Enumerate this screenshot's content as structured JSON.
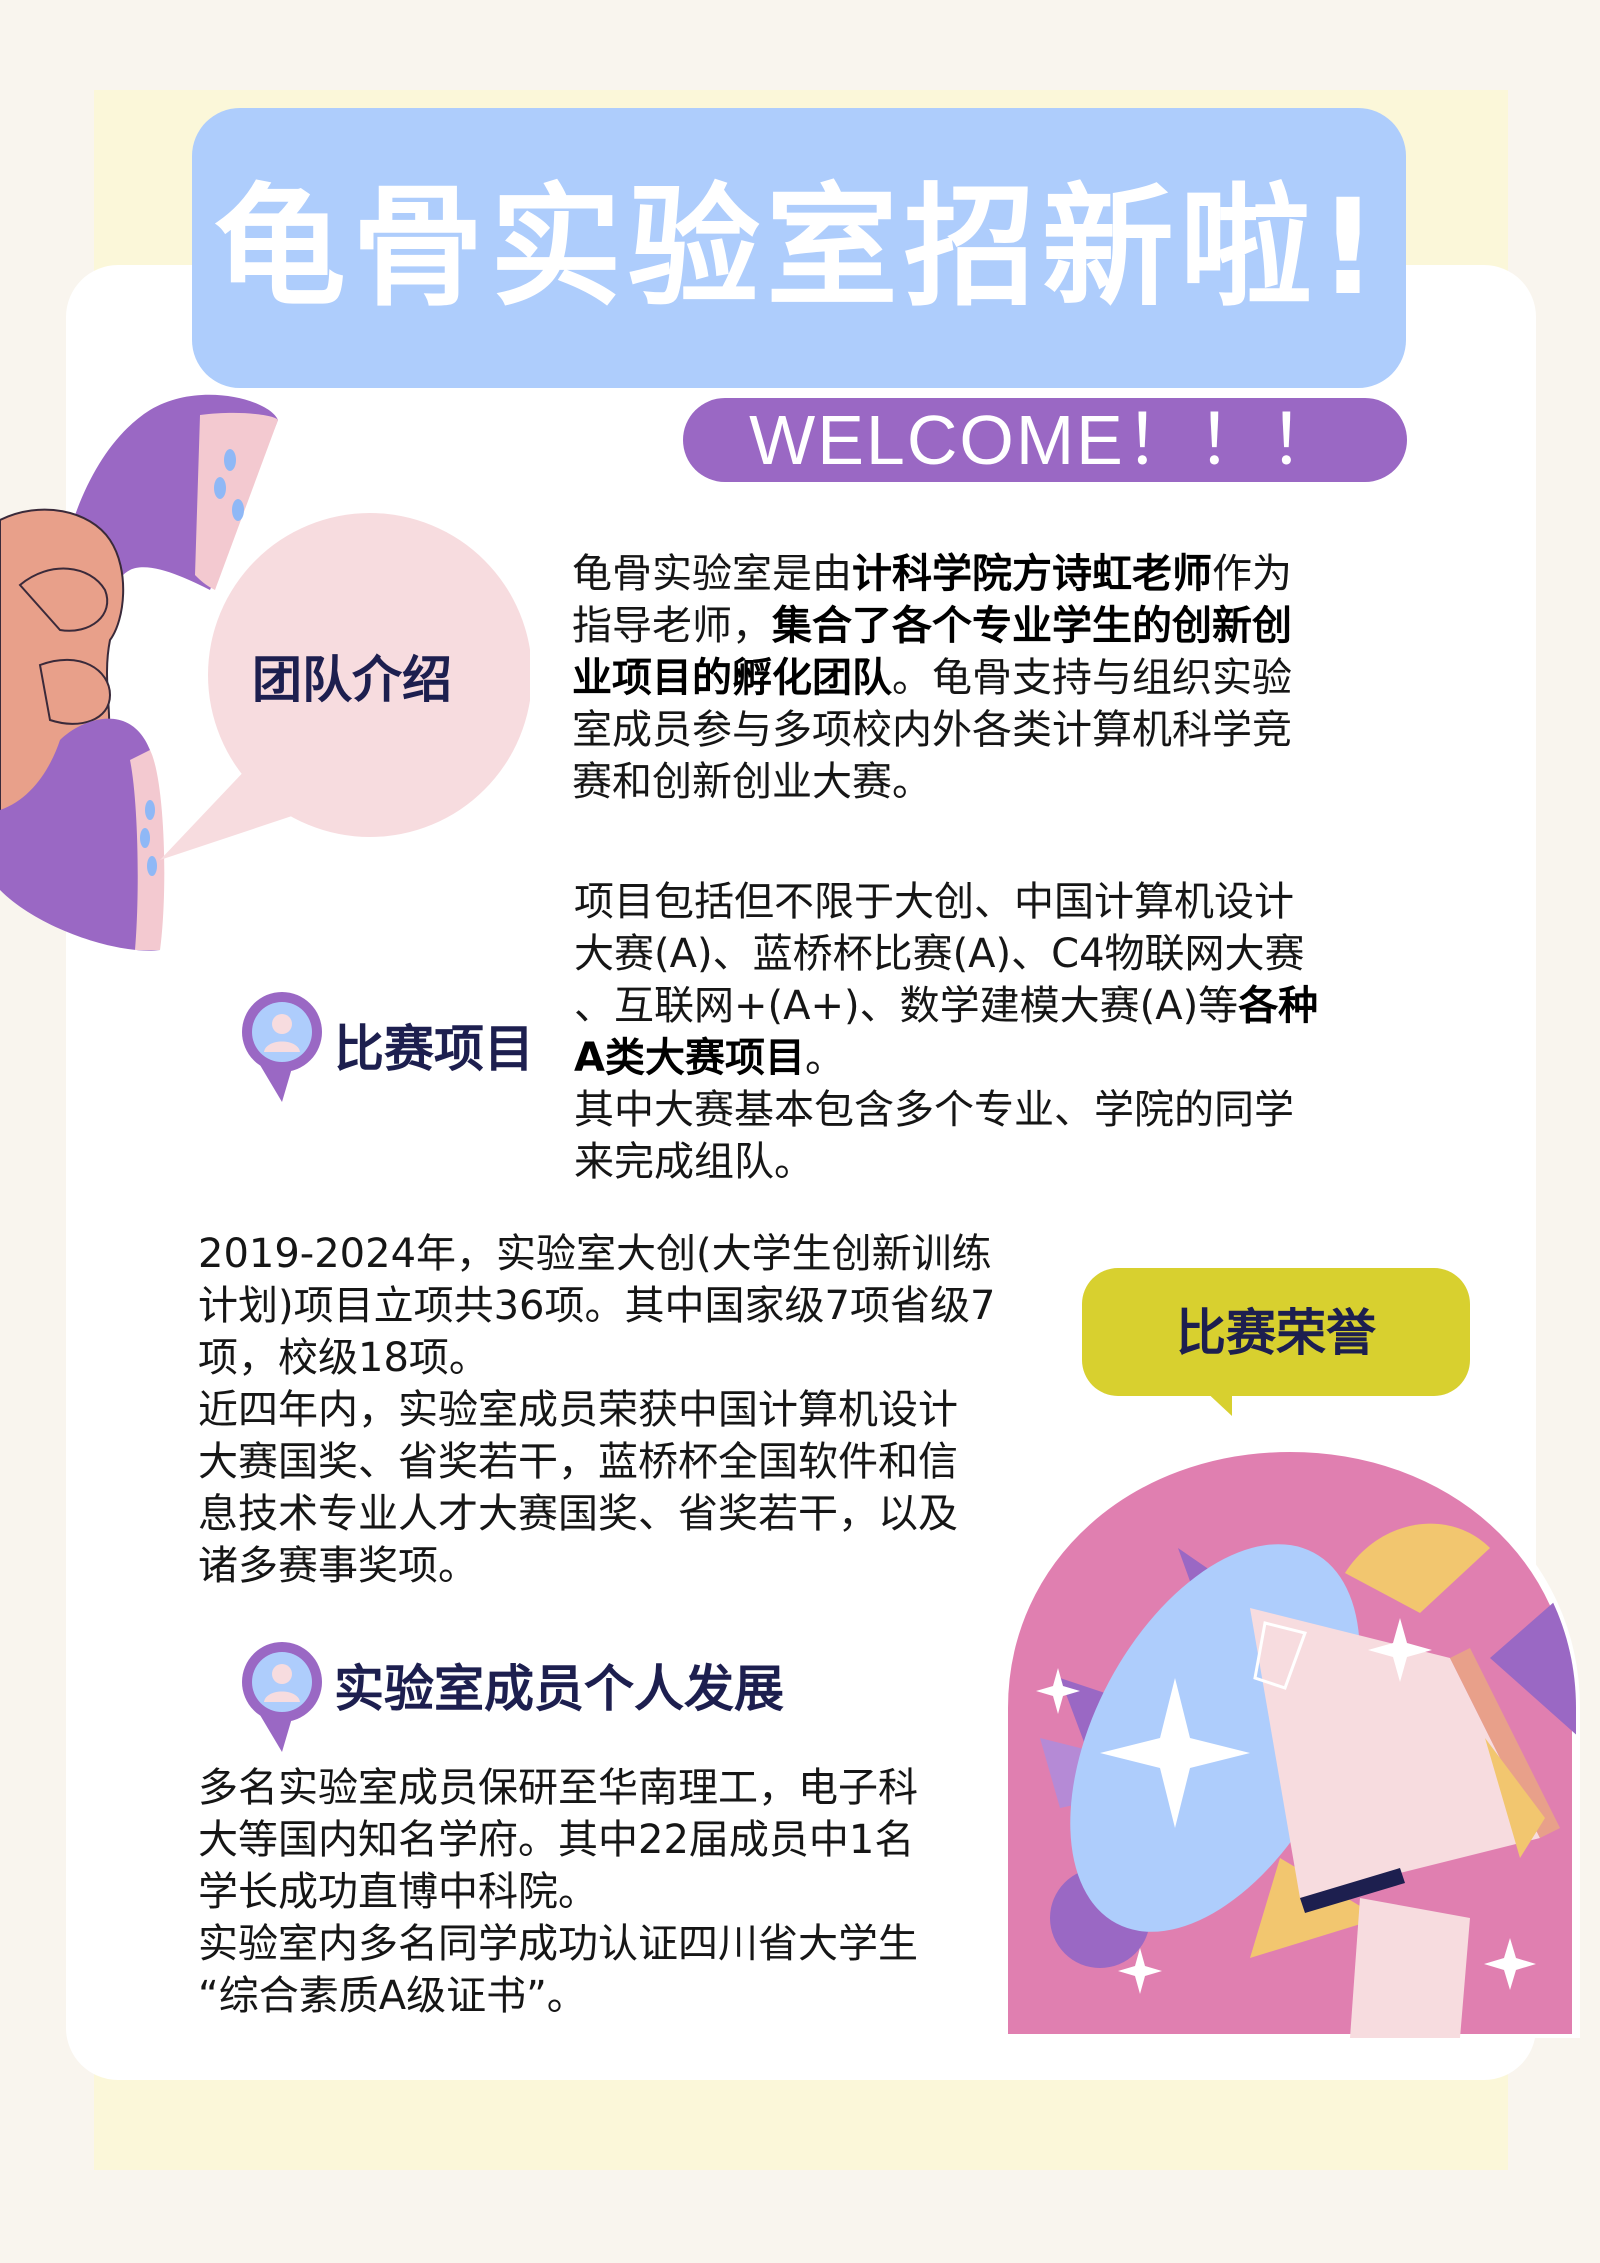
{
  "header": {
    "title": "龟骨实验室招新啦!",
    "welcome": "WELCOME！！！"
  },
  "team": {
    "label": "团队介绍",
    "lines": [
      [
        {
          "t": "龟骨实验室是由"
        },
        {
          "t": "计科学院方诗虹老师",
          "b": true
        },
        {
          "t": "作为"
        }
      ],
      [
        {
          "t": "指导老师，"
        },
        {
          "t": "集合了各个专业学生的创新创",
          "b": true
        }
      ],
      [
        {
          "t": "业项目的孵化团队",
          "b": true
        },
        {
          "t": "。龟骨支持与组织实验"
        }
      ],
      [
        {
          "t": "室成员参与多项校内外各类计算机科学竞"
        }
      ],
      [
        {
          "t": "赛和创新创业大赛。"
        }
      ]
    ]
  },
  "competition": {
    "label": "比赛项目",
    "lines": [
      [
        {
          "t": "项目包括但不限于大创、中国计算机设计"
        }
      ],
      [
        {
          "t": "大赛(A)、蓝桥杯比赛(A)、C4物联网大赛"
        }
      ],
      [
        {
          "t": "、互联网+(A+)、数学建模大赛(A)等"
        },
        {
          "t": "各种",
          "b": true
        }
      ],
      [
        {
          "t": "A类大赛项目",
          "b": true
        },
        {
          "t": "。"
        }
      ],
      [
        {
          "t": "其中大赛基本包含多个专业、学院的同学"
        }
      ],
      [
        {
          "t": "来完成组队。"
        }
      ]
    ]
  },
  "achievements": {
    "lines": [
      [
        {
          "t": "2019-2024年，实验室大创(大学生创新训练"
        }
      ],
      [
        {
          "t": "计划)项目立项共36项。其中国家级7项省级7"
        }
      ],
      [
        {
          "t": "项，校级18项。"
        }
      ],
      [
        {
          "t": "近四年内，实验室成员荣获中国计算机设计"
        }
      ],
      [
        {
          "t": "大赛国奖、省奖若干，蓝桥杯全国软件和信"
        }
      ],
      [
        {
          "t": "息技术专业人才大赛国奖、省奖若干，以及"
        }
      ],
      [
        {
          "t": "诸多赛事奖项。"
        }
      ]
    ]
  },
  "honor": {
    "label": "比赛荣誉"
  },
  "development": {
    "label": "实验室成员个人发展",
    "lines": [
      [
        {
          "t": "多名实验室成员保研至华南理工，电子科"
        }
      ],
      [
        {
          "t": "大等国内知名学府。其中22届成员中1名"
        }
      ],
      [
        {
          "t": "学长成功直博中科院。"
        }
      ],
      [
        {
          "t": "实验室内多名同学成功认证四川省大学生"
        }
      ],
      [
        {
          "t": "“综合素质A级证书”。"
        }
      ]
    ]
  },
  "icons": {
    "phone": "telephone-handset-icon",
    "speech": "speech-bubble-icon",
    "avatar": "user-avatar-pin-icon",
    "megaphone": "megaphone-icon"
  },
  "colors": {
    "title_banner": "#aecdfc",
    "welcome_pill": "#9a68c4",
    "team_bubble": "#f7dcdf",
    "honor_bubble": "#d8d02f",
    "purple": "#9a68c4",
    "pink": "#e07fb0",
    "label_navy": "#1d1f4f"
  }
}
